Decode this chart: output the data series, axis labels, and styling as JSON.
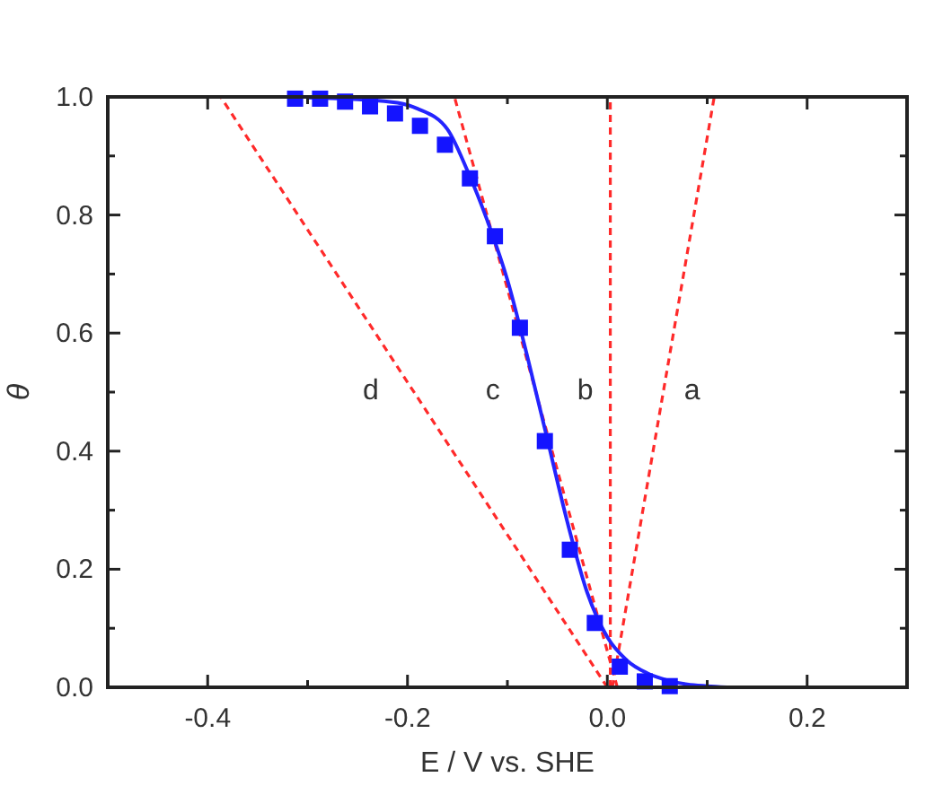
{
  "chart_data": {
    "type": "line",
    "xlabel": "E / V vs. SHE",
    "ylabel": "θ",
    "xlim": [
      -0.5,
      0.3
    ],
    "ylim": [
      0,
      1
    ],
    "xticks": [
      {
        "value": -0.4,
        "label": "-0.4"
      },
      {
        "value": -0.3,
        "label": null
      },
      {
        "value": -0.2,
        "label": "-0.2"
      },
      {
        "value": -0.1,
        "label": null
      },
      {
        "value": 0,
        "label": "0.0"
      },
      {
        "value": 0.1,
        "label": null
      },
      {
        "value": 0.2,
        "label": "0.2"
      }
    ],
    "yticks": [
      {
        "value": 0,
        "label": "0.0"
      },
      {
        "value": 0.1,
        "label": null
      },
      {
        "value": 0.2,
        "label": "0.2"
      },
      {
        "value": 0.3,
        "label": null
      },
      {
        "value": 0.4,
        "label": "0.4"
      },
      {
        "value": 0.5,
        "label": null
      },
      {
        "value": 0.6,
        "label": "0.6"
      },
      {
        "value": 0.7,
        "label": null
      },
      {
        "value": 0.8,
        "label": "0.8"
      },
      {
        "value": 0.9,
        "label": null
      },
      {
        "value": 1,
        "label": "1.0"
      }
    ],
    "grid": false,
    "legend": false,
    "series": [
      {
        "name": "a",
        "color": "#ff2a2a",
        "line_style": "dashed",
        "marker": "none",
        "x": [
          0.005,
          0.107
        ],
        "values": [
          0,
          1
        ]
      },
      {
        "name": "b",
        "color": "#ff2a2a",
        "line_style": "dashed",
        "marker": "none",
        "x": [
          0.003,
          0.003
        ],
        "values": [
          0,
          1
        ]
      },
      {
        "name": "c",
        "color": "#ff2a2a",
        "line_style": "dashed",
        "marker": "none",
        "x": [
          0.01,
          -0.153
        ],
        "values": [
          0,
          1
        ]
      },
      {
        "name": "d",
        "color": "#ff2a2a",
        "line_style": "dashed",
        "marker": "none",
        "x": [
          0,
          -0.387
        ],
        "values": [
          0,
          1
        ]
      },
      {
        "color": "#2424ff",
        "line_style": "solid",
        "marker": "none",
        "x": [
          -0.3,
          -0.25,
          -0.21,
          -0.19,
          -0.16,
          -0.14,
          -0.12,
          -0.1,
          -0.08,
          -0.06,
          -0.04,
          -0.02,
          0,
          0.02,
          0.04,
          0.06,
          0.08,
          0.1,
          0.12
        ],
        "values": [
          0.999,
          0.996,
          0.99,
          0.98,
          0.945,
          0.875,
          0.79,
          0.69,
          0.56,
          0.42,
          0.28,
          0.16,
          0.085,
          0.045,
          0.024,
          0.012,
          0.005,
          0.002,
          0.0
        ]
      },
      {
        "type": "scatter",
        "color": "#1414ff",
        "marker": "square",
        "x": [
          -0.3125,
          -0.2875,
          -0.2625,
          -0.2375,
          -0.2125,
          -0.1875,
          -0.1625,
          -0.1375,
          -0.1125,
          -0.0875,
          -0.0625,
          -0.0375,
          -0.0125,
          0.0125,
          0.0375,
          0.0625
        ],
        "values": [
          0.997,
          0.997,
          0.992,
          0.984,
          0.972,
          0.951,
          0.919,
          0.862,
          0.764,
          0.609,
          0.417,
          0.233,
          0.109,
          0.035,
          0.01,
          0.002
        ]
      }
    ]
  }
}
